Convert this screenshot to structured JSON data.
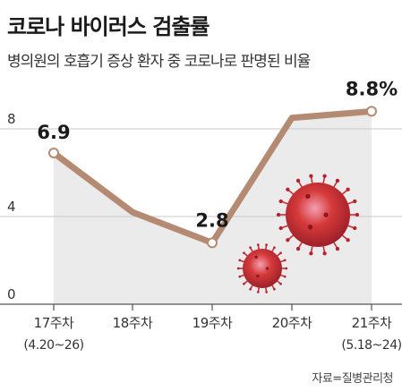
{
  "header": {
    "title": "코로나 바이러스 검출률",
    "subtitle": "병의원의 호흡기 증상 환자 중 코로나로 판명된 비율"
  },
  "source": "자료=질병관리청",
  "chart_data": {
    "type": "line",
    "title": "코로나 바이러스 검출률",
    "subtitle": "병의원의 호흡기 증상 환자 중 코로나로 판명된 비율",
    "categories": [
      "17주차",
      "18주차",
      "19주차",
      "20주차",
      "21주차"
    ],
    "category_sublabels": [
      "(4.20~26)",
      "",
      "",
      "",
      "(5.18~24)"
    ],
    "values": [
      6.9,
      4.2,
      2.8,
      8.5,
      8.8
    ],
    "data_labels": [
      "6.9",
      "",
      "2.8",
      "",
      "8.8%"
    ],
    "y_ticks": [
      "0",
      "4",
      "8"
    ],
    "ylim": [
      0,
      10
    ],
    "grid": true,
    "xlabel": "",
    "ylabel": "",
    "colors": {
      "line": "#b48a72",
      "area": "#ebebeb",
      "marker_fill": "#ffffff",
      "grid": "#c8c8c8",
      "axis": "#555555",
      "virus": "#d63a3a"
    }
  }
}
